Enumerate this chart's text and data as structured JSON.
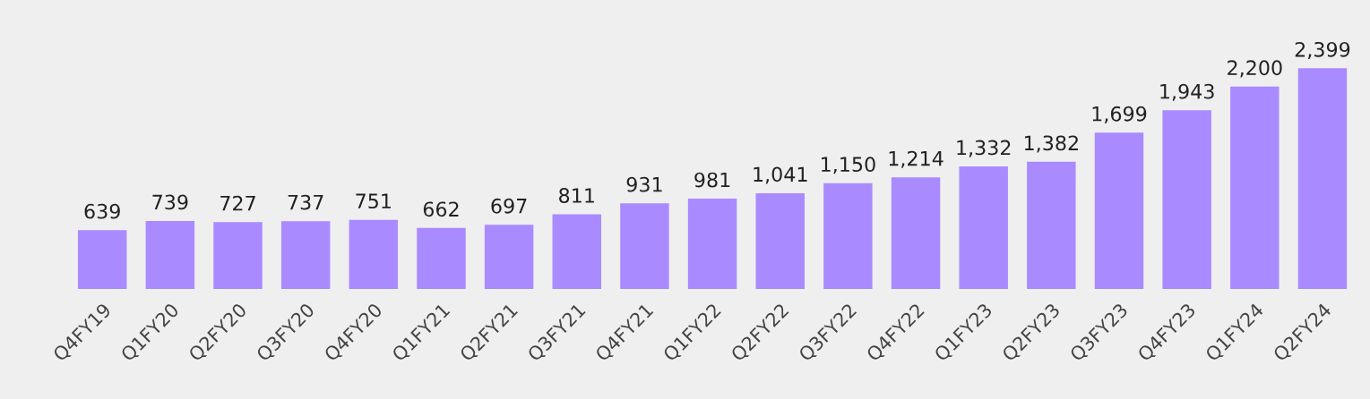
{
  "chart_data": {
    "type": "bar",
    "categories": [
      "Q4FY19",
      "Q1FY20",
      "Q2FY20",
      "Q3FY20",
      "Q4FY20",
      "Q1FY21",
      "Q2FY21",
      "Q3FY21",
      "Q4FY21",
      "Q1FY22",
      "Q2FY22",
      "Q3FY22",
      "Q4FY22",
      "Q1FY23",
      "Q2FY23",
      "Q3FY23",
      "Q4FY23",
      "Q1FY24",
      "Q2FY24"
    ],
    "values": [
      639,
      739,
      727,
      737,
      751,
      662,
      697,
      811,
      931,
      981,
      1041,
      1150,
      1214,
      1332,
      1382,
      1699,
      1943,
      2200,
      2399
    ],
    "color": "#a98bff",
    "value_labels": [
      "639",
      "739",
      "727",
      "737",
      "751",
      "662",
      "697",
      "811",
      "931",
      "981",
      "1,041",
      "1,150",
      "1,214",
      "1,332",
      "1,382",
      "1,699",
      "1,943",
      "2,200",
      "2,399"
    ],
    "tick_labels": "x",
    "grid": false,
    "legend": false
  }
}
